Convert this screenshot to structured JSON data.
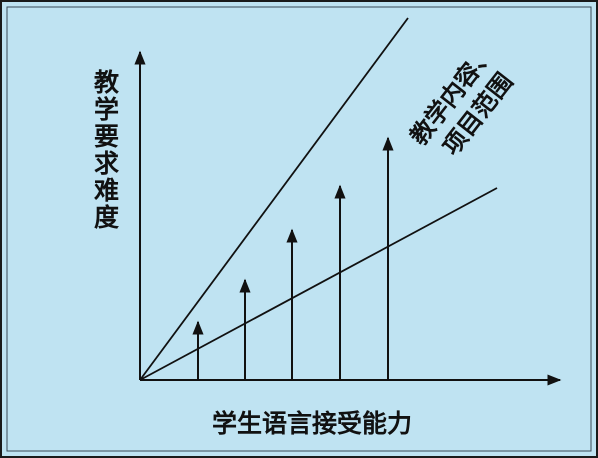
{
  "diagram": {
    "y_axis_label": "教学要求难度",
    "x_axis_label": "学生语言接受能力",
    "line_label": [
      "教学内容、",
      "项目范围"
    ]
  }
}
